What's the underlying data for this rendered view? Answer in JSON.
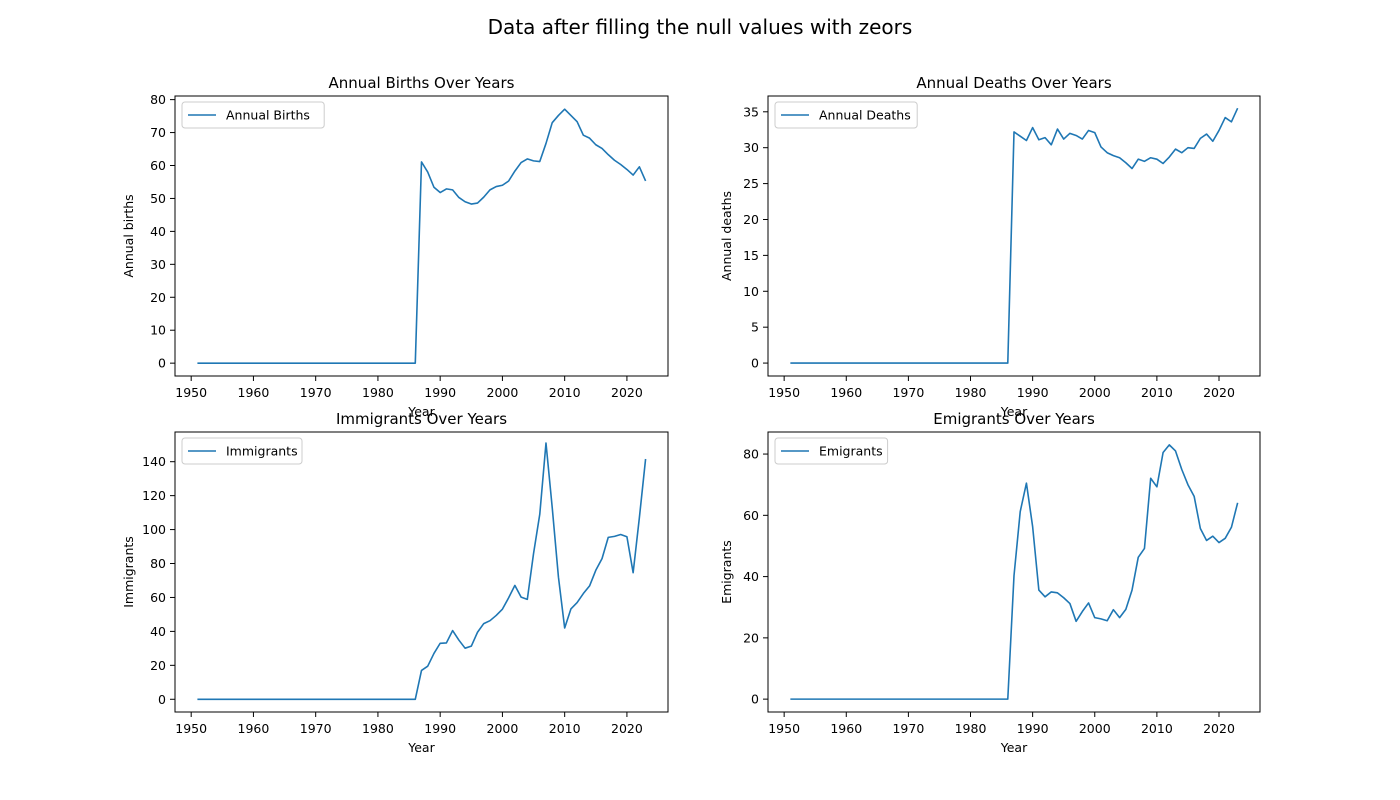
{
  "figure_title": "Data after filling the null values with zeors",
  "line_color": "#1f77b4",
  "chart_data": [
    {
      "type": "line",
      "title": "Annual Births Over Years",
      "xlabel": "Year",
      "ylabel": "Annual births",
      "xlim": [
        1947.4,
        2026.6
      ],
      "ylim": [
        -3.9,
        81.1
      ],
      "xticks": [
        1950,
        1960,
        1970,
        1980,
        1990,
        2000,
        2010,
        2020
      ],
      "yticks": [
        0,
        10,
        20,
        30,
        40,
        50,
        60,
        70,
        80
      ],
      "legend": "upper-left",
      "series": [
        {
          "name": "Annual Births",
          "x": [
            1951,
            1952,
            1953,
            1954,
            1955,
            1956,
            1957,
            1958,
            1959,
            1960,
            1961,
            1962,
            1963,
            1964,
            1965,
            1966,
            1967,
            1968,
            1969,
            1970,
            1971,
            1972,
            1973,
            1974,
            1975,
            1976,
            1977,
            1978,
            1979,
            1980,
            1981,
            1982,
            1983,
            1984,
            1985,
            1986,
            1987,
            1988,
            1989,
            1990,
            1991,
            1992,
            1993,
            1994,
            1995,
            1996,
            1997,
            1998,
            1999,
            2000,
            2001,
            2002,
            2003,
            2004,
            2005,
            2006,
            2007,
            2008,
            2009,
            2010,
            2011,
            2012,
            2013,
            2014,
            2015,
            2016,
            2017,
            2018,
            2019,
            2020,
            2021,
            2022,
            2023
          ],
          "y": [
            0,
            0,
            0,
            0,
            0,
            0,
            0,
            0,
            0,
            0,
            0,
            0,
            0,
            0,
            0,
            0,
            0,
            0,
            0,
            0,
            0,
            0,
            0,
            0,
            0,
            0,
            0,
            0,
            0,
            0,
            0,
            0,
            0,
            0,
            0,
            0,
            61.1,
            58.0,
            53.4,
            51.8,
            52.9,
            52.6,
            50.3,
            49.0,
            48.3,
            48.6,
            50.4,
            52.6,
            53.6,
            54.0,
            55.3,
            58.3,
            60.9,
            62.0,
            61.4,
            61.2,
            66.7,
            73.0,
            75.2,
            77.1,
            75.2,
            73.3,
            69.2,
            68.3,
            66.3,
            65.2,
            63.3,
            61.6,
            60.3,
            58.8,
            57.1,
            59.6,
            55.3
          ]
        }
      ]
    },
    {
      "type": "line",
      "title": "Annual Deaths Over Years",
      "xlabel": "Year",
      "ylabel": "Annual deaths",
      "xlim": [
        1947.4,
        2026.6
      ],
      "ylim": [
        -1.8,
        37.2
      ],
      "xticks": [
        1950,
        1960,
        1970,
        1980,
        1990,
        2000,
        2010,
        2020
      ],
      "yticks": [
        0,
        5,
        10,
        15,
        20,
        25,
        30,
        35
      ],
      "legend": "upper-left",
      "series": [
        {
          "name": "Annual Deaths",
          "x": [
            1951,
            1952,
            1953,
            1954,
            1955,
            1956,
            1957,
            1958,
            1959,
            1960,
            1961,
            1962,
            1963,
            1964,
            1965,
            1966,
            1967,
            1968,
            1969,
            1970,
            1971,
            1972,
            1973,
            1974,
            1975,
            1976,
            1977,
            1978,
            1979,
            1980,
            1981,
            1982,
            1983,
            1984,
            1985,
            1986,
            1987,
            1988,
            1989,
            1990,
            1991,
            1992,
            1993,
            1994,
            1995,
            1996,
            1997,
            1998,
            1999,
            2000,
            2001,
            2002,
            2003,
            2004,
            2005,
            2006,
            2007,
            2008,
            2009,
            2010,
            2011,
            2012,
            2013,
            2014,
            2015,
            2016,
            2017,
            2018,
            2019,
            2020,
            2021,
            2022,
            2023
          ],
          "y": [
            0,
            0,
            0,
            0,
            0,
            0,
            0,
            0,
            0,
            0,
            0,
            0,
            0,
            0,
            0,
            0,
            0,
            0,
            0,
            0,
            0,
            0,
            0,
            0,
            0,
            0,
            0,
            0,
            0,
            0,
            0,
            0,
            0,
            0,
            0,
            0,
            32.2,
            31.6,
            31.0,
            32.8,
            31.1,
            31.4,
            30.4,
            32.6,
            31.2,
            32.0,
            31.7,
            31.2,
            32.4,
            32.1,
            30.1,
            29.3,
            28.9,
            28.6,
            27.9,
            27.1,
            28.4,
            28.1,
            28.6,
            28.4,
            27.8,
            28.7,
            29.8,
            29.3,
            30.0,
            29.9,
            31.3,
            31.9,
            30.9,
            32.4,
            34.2,
            33.6,
            35.5
          ]
        }
      ]
    },
    {
      "type": "line",
      "title": "Immigrants Over Years",
      "xlabel": "Year",
      "ylabel": "Immigrants",
      "xlim": [
        1947.4,
        2026.6
      ],
      "ylim": [
        -7.5,
        157.5
      ],
      "xticks": [
        1950,
        1960,
        1970,
        1980,
        1990,
        2000,
        2010,
        2020
      ],
      "yticks": [
        0,
        20,
        40,
        60,
        80,
        100,
        120,
        140
      ],
      "legend": "upper-left",
      "series": [
        {
          "name": "Immigrants",
          "x": [
            1951,
            1952,
            1953,
            1954,
            1955,
            1956,
            1957,
            1958,
            1959,
            1960,
            1961,
            1962,
            1963,
            1964,
            1965,
            1966,
            1967,
            1968,
            1969,
            1970,
            1971,
            1972,
            1973,
            1974,
            1975,
            1976,
            1977,
            1978,
            1979,
            1980,
            1981,
            1982,
            1983,
            1984,
            1985,
            1986,
            1987,
            1988,
            1989,
            1990,
            1991,
            1992,
            1993,
            1994,
            1995,
            1996,
            1997,
            1998,
            1999,
            2000,
            2001,
            2002,
            2003,
            2004,
            2005,
            2006,
            2007,
            2008,
            2009,
            2010,
            2011,
            2012,
            2013,
            2014,
            2015,
            2016,
            2017,
            2018,
            2019,
            2020,
            2021,
            2022,
            2023
          ],
          "y": [
            0,
            0,
            0,
            0,
            0,
            0,
            0,
            0,
            0,
            0,
            0,
            0,
            0,
            0,
            0,
            0,
            0,
            0,
            0,
            0,
            0,
            0,
            0,
            0,
            0,
            0,
            0,
            0,
            0,
            0,
            0,
            0,
            0,
            0,
            0,
            0,
            17.0,
            19.5,
            27.0,
            33.0,
            33.2,
            40.5,
            34.9,
            30.1,
            31.3,
            39.5,
            44.6,
            46.3,
            49.4,
            53.1,
            59.8,
            67.1,
            60.2,
            58.9,
            85.9,
            109.0,
            151.0,
            113.0,
            72.0,
            42.0,
            53.2,
            57.0,
            62.3,
            66.8,
            76.0,
            82.9,
            95.4,
            96.0,
            97.1,
            95.8,
            74.6,
            107.0,
            141.6
          ]
        }
      ]
    },
    {
      "type": "line",
      "title": "Emigrants Over Years",
      "xlabel": "Year",
      "ylabel": "Emigrants",
      "xlim": [
        1947.4,
        2026.6
      ],
      "ylim": [
        -4.2,
        87.2
      ],
      "xticks": [
        1950,
        1960,
        1970,
        1980,
        1990,
        2000,
        2010,
        2020
      ],
      "yticks": [
        0,
        20,
        40,
        60,
        80
      ],
      "legend": "upper-left",
      "series": [
        {
          "name": "Emigrants",
          "x": [
            1951,
            1952,
            1953,
            1954,
            1955,
            1956,
            1957,
            1958,
            1959,
            1960,
            1961,
            1962,
            1963,
            1964,
            1965,
            1966,
            1967,
            1968,
            1969,
            1970,
            1971,
            1972,
            1973,
            1974,
            1975,
            1976,
            1977,
            1978,
            1979,
            1980,
            1981,
            1982,
            1983,
            1984,
            1985,
            1986,
            1987,
            1988,
            1989,
            1990,
            1991,
            1992,
            1993,
            1994,
            1995,
            1996,
            1997,
            1998,
            1999,
            2000,
            2001,
            2002,
            2003,
            2004,
            2005,
            2006,
            2007,
            2008,
            2009,
            2010,
            2011,
            2012,
            2013,
            2014,
            2015,
            2016,
            2017,
            2018,
            2019,
            2020,
            2021,
            2022,
            2023
          ],
          "y": [
            0,
            0,
            0,
            0,
            0,
            0,
            0,
            0,
            0,
            0,
            0,
            0,
            0,
            0,
            0,
            0,
            0,
            0,
            0,
            0,
            0,
            0,
            0,
            0,
            0,
            0,
            0,
            0,
            0,
            0,
            0,
            0,
            0,
            0,
            0,
            0,
            40.3,
            61.2,
            70.5,
            56.3,
            35.6,
            33.4,
            35.0,
            34.7,
            33.1,
            31.2,
            25.4,
            28.6,
            31.4,
            26.6,
            26.2,
            25.6,
            29.2,
            26.6,
            29.3,
            35.6,
            46.3,
            49.2,
            72.1,
            69.3,
            80.5,
            83.0,
            81.0,
            75.0,
            70.0,
            66.2,
            55.7,
            51.8,
            53.2,
            51.1,
            52.5,
            56.1,
            64.1
          ]
        }
      ]
    }
  ]
}
